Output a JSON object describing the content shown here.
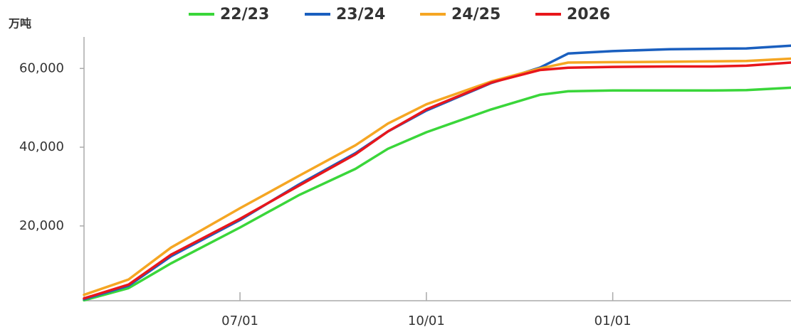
{
  "chart_data": {
    "type": "line",
    "y_label": "万吨",
    "x": [
      0,
      22,
      43,
      77,
      106,
      134,
      150,
      169,
      201,
      225,
      239,
      261,
      289,
      310,
      327,
      349
    ],
    "xlim": [
      0,
      349
    ],
    "xticks": [
      {
        "value": 77,
        "label": "07/01"
      },
      {
        "value": 169,
        "label": "10/01"
      },
      {
        "value": 261,
        "label": "01/01"
      }
    ],
    "ylim": [
      1000,
      68000
    ],
    "yticks": [
      {
        "value": 20000,
        "label": "20,000"
      },
      {
        "value": 40000,
        "label": "40,000"
      },
      {
        "value": 60000,
        "label": "60,000"
      }
    ],
    "series": [
      {
        "name": "22/23",
        "color": "#3ad63a",
        "values": [
          1100,
          4200,
          10500,
          19600,
          27800,
          34500,
          39600,
          43800,
          49600,
          53300,
          54200,
          54400,
          54400,
          54400,
          54500,
          55100
        ]
      },
      {
        "name": "23/24",
        "color": "#1a5fbf",
        "values": [
          1400,
          4800,
          12300,
          21500,
          30500,
          38500,
          44000,
          49300,
          56300,
          60200,
          63800,
          64400,
          64900,
          65000,
          65100,
          65800
        ]
      },
      {
        "name": "24/25",
        "color": "#f5a623",
        "values": [
          2500,
          6400,
          14500,
          24500,
          32700,
          40500,
          46000,
          50900,
          56700,
          60000,
          61500,
          61600,
          61700,
          61800,
          61900,
          62500
        ]
      },
      {
        "name": "2026",
        "color": "#e8161b",
        "values": [
          1600,
          5100,
          12700,
          21800,
          30200,
          38200,
          44000,
          49600,
          56400,
          59600,
          60200,
          60400,
          60500,
          60500,
          60700,
          61500
        ]
      }
    ]
  }
}
